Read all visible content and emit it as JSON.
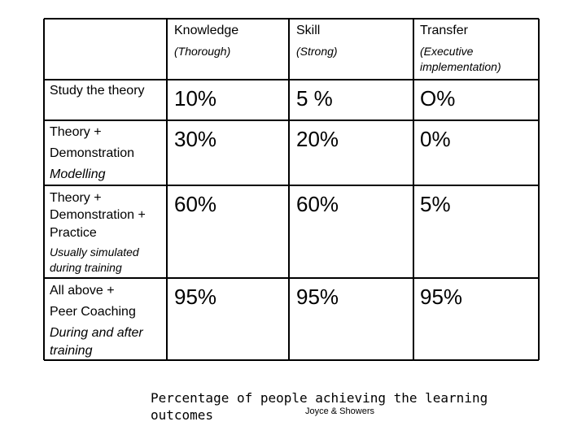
{
  "table": {
    "columns": [
      {
        "label": "Knowledge",
        "sublabel": "(Thorough)"
      },
      {
        "label": "Skill",
        "sublabel": "(Strong)"
      },
      {
        "label": "Transfer",
        "sublabel_line1": "(Executive",
        "sublabel_line2": "implementation)"
      }
    ],
    "rows": [
      {
        "line1": "Study the theory",
        "values": [
          "10%",
          "5 %",
          "O%"
        ]
      },
      {
        "line1": "Theory +",
        "line2": "Demonstration",
        "line3": "Modelling",
        "values": [
          "30%",
          "20%",
          "0%"
        ]
      },
      {
        "line1": "Theory +",
        "line2": "Demonstration +",
        "line3": "Practice",
        "note1": "Usually simulated",
        "note2": "during training",
        "values": [
          "60%",
          "60%",
          "5%"
        ]
      },
      {
        "line1": "All above +",
        "line2": "Peer Coaching",
        "line3": "During and after",
        "line4": "training",
        "values": [
          "95%",
          "95%",
          "95%"
        ]
      }
    ]
  },
  "caption": {
    "line1": "Percentage of people achieving the learning",
    "line2": "outcomes",
    "credit": "Joyce & Showers"
  }
}
